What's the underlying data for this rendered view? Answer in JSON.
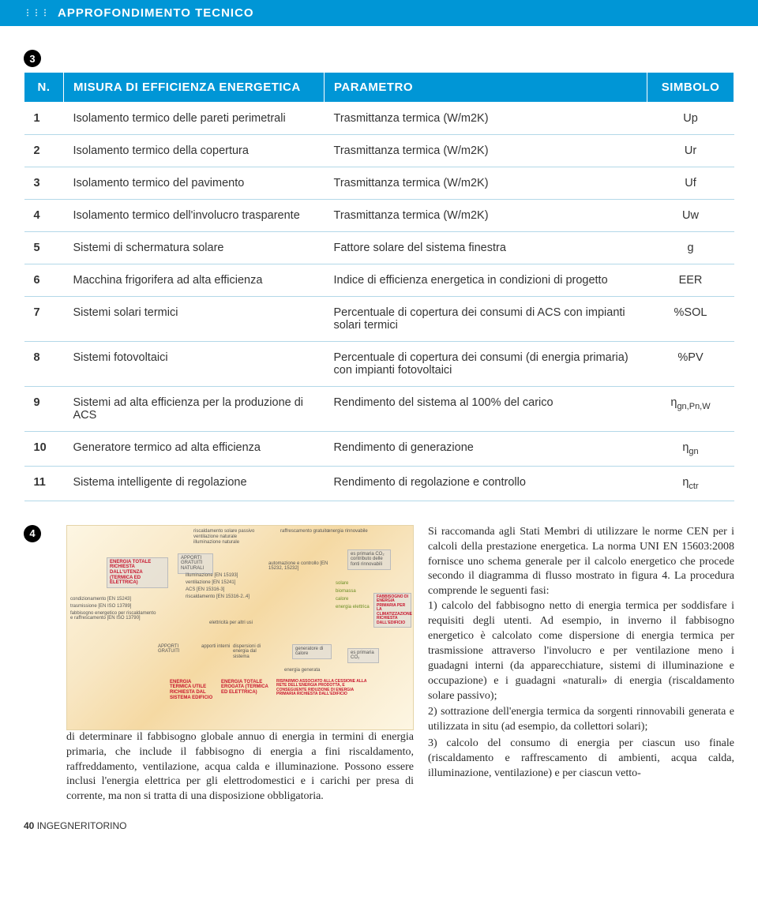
{
  "header": {
    "title": "APPROFONDIMENTO TECNICO"
  },
  "badge3": "3",
  "badge4": "4",
  "table": {
    "headers": {
      "n": "N.",
      "misura": "MISURA DI EFFICIENZA ENERGETICA",
      "parametro": "PARAMETRO",
      "simbolo": "SIMBOLO"
    },
    "rows": [
      {
        "n": "1",
        "mis": "Isolamento termico delle pareti perimetrali",
        "par": "Trasmittanza termica (W/m2K)",
        "sim": "Up"
      },
      {
        "n": "2",
        "mis": "Isolamento termico della copertura",
        "par": "Trasmittanza termica (W/m2K)",
        "sim": "Ur"
      },
      {
        "n": "3",
        "mis": "Isolamento termico del pavimento",
        "par": "Trasmittanza termica (W/m2K)",
        "sim": "Uf"
      },
      {
        "n": "4",
        "mis": "Isolamento termico dell'involucro trasparente",
        "par": "Trasmittanza termica (W/m2K)",
        "sim": "Uw"
      },
      {
        "n": "5",
        "mis": "Sistemi di schermatura solare",
        "par": "Fattore solare del sistema finestra",
        "sim": "g"
      },
      {
        "n": "6",
        "mis": "Macchina frigorifera ad alta efficienza",
        "par": "Indice di efficienza energetica in condizioni di progetto",
        "sim": "EER"
      },
      {
        "n": "7",
        "mis": "Sistemi solari termici",
        "par": "Percentuale  di copertura dei consumi di ACS con impianti solari termici",
        "sim": "%SOL"
      },
      {
        "n": "8",
        "mis": "Sistemi fotovoltaici",
        "par": "Percentuale di copertura dei consumi (di energia primaria) con impianti fotovoltaici",
        "sim": "%PV"
      },
      {
        "n": "9",
        "mis": "Sistemi ad alta efficienza per la produzione di ACS",
        "par": "Rendimento del sistema al 100% del carico",
        "sim_html": "η<span class='sub'>gn,Pn,W</span>"
      },
      {
        "n": "10",
        "mis": "Generatore termico ad alta efficienza",
        "par": "Rendimento di generazione",
        "sim_html": "η<span class='sub'>gn</span>"
      },
      {
        "n": "11",
        "mis": "Sistema intelligente di regolazione",
        "par": "Rendimento di regolazione e controllo",
        "sim_html": "η<span class='sub'>ctr</span>"
      }
    ]
  },
  "diagram_labels": {
    "top1": "raffrescamento gratuito",
    "top2": "energia rinnovabile",
    "l1": "riscaldamento solare passivo",
    "l2": "ventilazione naturale",
    "l3": "illuminazione naturale",
    "box_energia_totale": "ENERGIA TOTALE RICHIESTA DALL'UTENZA (TERMICA ED ELETTRICA)",
    "box_apporti": "APPORTI GRATUITI NATURALI",
    "cond": "condizionamento [EN 15243]",
    "tras": "trasmissione [EN ISO 13789]",
    "fab": "fabbisogno energetico per riscaldamento e raffrescamento [EN ISO 13790]",
    "ill": "illuminazione [EN 15193]",
    "vent": "ventilazione [EN 15241]",
    "acs": "ACS [EN 15316-3]",
    "risc": "riscaldamento [EN 15316-2..4]",
    "autom": "automazione e controllo [EN 15232, 15232]",
    "elet": "elettricità per altri usi",
    "apporti_int": "apporti interni",
    "disp": "dispersioni di energia dal sistema",
    "ep": "es primaria CO₂ contributo delle fonti rinnovabili",
    "solare": "solare",
    "biom": "biomassa",
    "calore": "calore",
    "en_elet": "energia elettrica",
    "fab_ep": "FABBISOGNO DI ENERGIA PRIMARIA PER LA CLIMATIZZAZIONE RICHIESTA DALL'EDIFICIO",
    "gen": "generatore di calore",
    "eg": "energia generata",
    "eg2": "es primaria CO₂",
    "e_utile": "ENERGIA TERMICA UTILE RICHIESTA DAL SISTEMA EDIFICIO",
    "e_erog": "ENERGIA TOTALE EROGATA (TERMICA ED ELETTRICA)",
    "risp": "RISPARMIO ASSOCIATO ALLA CESSIONE ALLA RETE DELL'ENERGIA PRODOTTA, E CONSEGUENTE RIDUZIONE DI ENERGIA PRIMARIA RICHIESTA DALL'EDIFICIO",
    "app_grat": "APPORTI GRATUITI"
  },
  "col2_text": "di determinare il fabbisogno globale annuo di energia in termini di energia primaria, che include il fabbisogno di energia a fini riscaldamento, raffreddamento, ventilazione, acqua calda e illuminazione. Possono essere inclusi l'energia elettrica per gli elettrodomestici e i carichi per presa di corrente, ma non si tratta di una disposizione obbligatoria.",
  "col3_text_a": "Si raccomanda agli Stati Membri di utilizzare le norme CEN per i calcoli della prestazione energetica. La norma UNI EN 15603:2008 fornisce uno schema generale per il calcolo energetico che procede secondo il diagramma di flusso mostrato in figura 4. La procedura comprende le seguenti fasi:",
  "col3_items": [
    {
      "num": "1)",
      "txt": "calcolo del fabbisogno netto di energia termica per soddisfare i requisiti degli utenti. Ad esempio, in inverno il fabbisogno energetico è calcolato come dispersione di energia termica per trasmissione attraverso l'involucro e per ventilazione meno i guadagni interni (da apparecchiature, sistemi di illuminazione e occupazione) e i guadagni «naturali» di energia (riscaldamento solare passivo);"
    },
    {
      "num": "2)",
      "txt": "sottrazione dell'energia termica da sorgenti rinnovabili generata e utilizzata in situ (ad esempio, da collettori solari);"
    },
    {
      "num": "3)",
      "txt": "calcolo del consumo di energia per ciascun uso finale (riscaldamento e raffrescamento di ambienti, acqua calda, illuminazione, ventilazione) e per ciascun vetto-"
    }
  ],
  "footer": {
    "page": "40",
    "mag": "INGEGNERITORINO"
  },
  "colors": {
    "blue": "#0096d6",
    "row_border": "#b3d8e8",
    "red": "#c8152d"
  }
}
